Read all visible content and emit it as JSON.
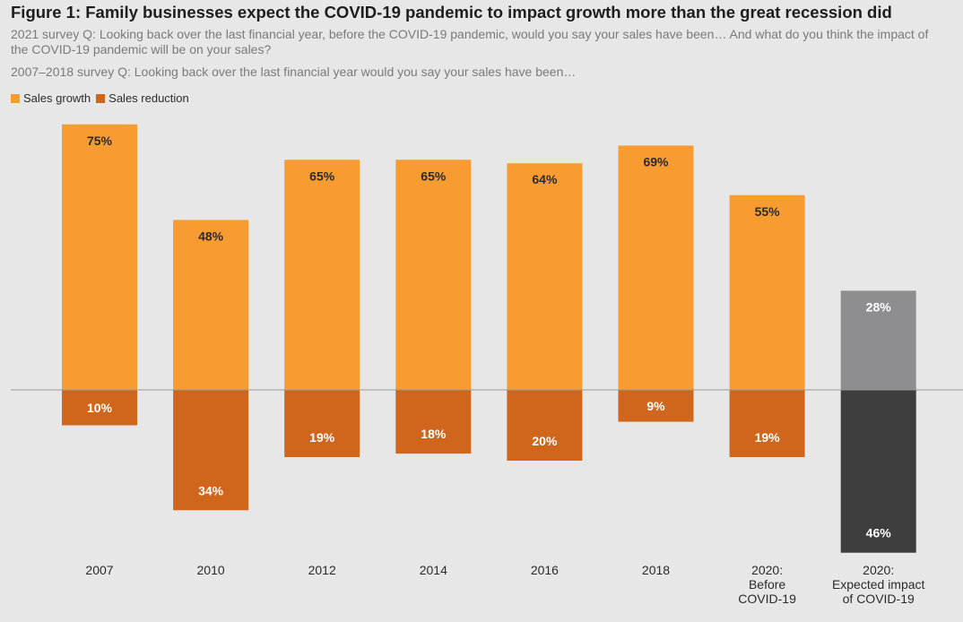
{
  "header": {
    "title": "Figure 1: Family businesses expect the COVID-19 pandemic to impact growth more than the great recession did",
    "question_2021": "2021 survey Q: Looking back over the last financial year, before the COVID-19 pandemic, would you say your sales have been… And what do you think the impact of the COVID-19 pandemic will be on your sales?",
    "question_2007_2018": "2007–2018 survey Q: Looking back over the last financial year would you say your sales have been…"
  },
  "legend": {
    "growth_label": "Sales growth",
    "reduction_label": "Sales reduction"
  },
  "colors": {
    "growth": "#f89c32",
    "reduction": "#cf661b",
    "expected_growth": "#8e8e90",
    "expected_reduction": "#3e3e3e",
    "axis": "#9a9a9a",
    "label_dark": "#2b2b2b",
    "label_light": "#ffffff"
  },
  "chart_data": {
    "type": "bar",
    "title": "Figure 1: Family businesses expect the COVID-19 pandemic to impact growth more than the great recession did",
    "categories": [
      [
        "2007"
      ],
      [
        "2010"
      ],
      [
        "2012"
      ],
      [
        "2014"
      ],
      [
        "2016"
      ],
      [
        "2018"
      ],
      [
        "2020:",
        "Before",
        "COVID-19"
      ],
      [
        "2020:",
        "Expected impact",
        "of COVID-19"
      ]
    ],
    "series": [
      {
        "name": "Sales growth",
        "direction": "up",
        "values": [
          75,
          48,
          65,
          65,
          64,
          69,
          55,
          28
        ]
      },
      {
        "name": "Sales reduction",
        "direction": "down",
        "values": [
          10,
          34,
          19,
          18,
          20,
          9,
          19,
          46
        ]
      }
    ],
    "value_suffix": "%",
    "highlight_category_index": 7,
    "xlabel": "",
    "ylabel": "",
    "ylim": [
      -46,
      75
    ],
    "grid": false,
    "legend_position": "top-left"
  }
}
